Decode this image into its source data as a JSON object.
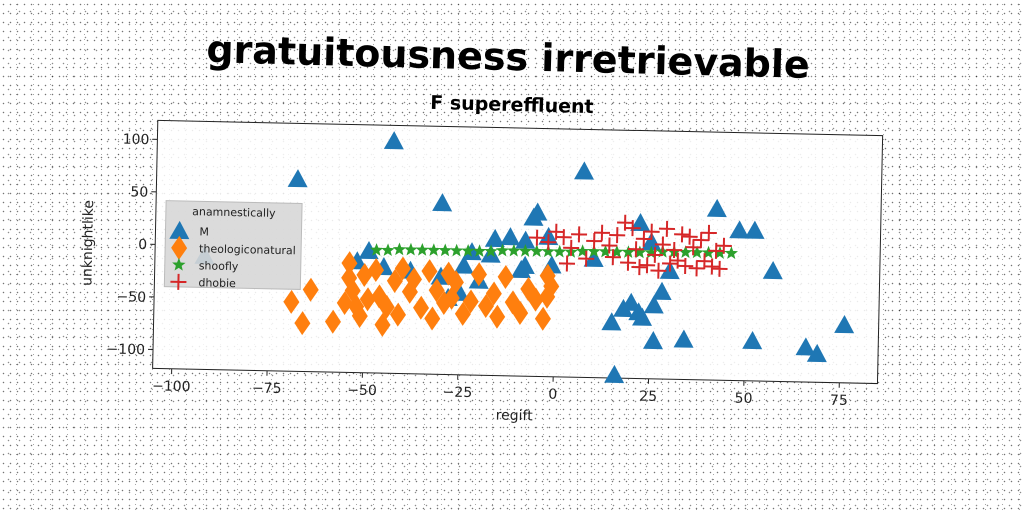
{
  "chart_data": {
    "type": "scatter",
    "title": "gratuitousness irretrievable",
    "subtitle": "F supereffluent",
    "xlabel": "regift",
    "ylabel": "unknightlike",
    "xlim": [
      -105,
      85
    ],
    "ylim": [
      -118,
      118
    ],
    "xticks": [
      -100,
      -75,
      -50,
      -25,
      0,
      25,
      50,
      75
    ],
    "yticks": [
      100,
      50,
      0,
      -50,
      -100
    ],
    "xtick_labels": [
      "−100",
      "−75",
      "−50",
      "−25",
      "0",
      "25",
      "50",
      "75"
    ],
    "ytick_labels": [
      "100",
      "50",
      "0",
      "−50",
      "−100"
    ],
    "grid": false,
    "legend": {
      "title": "anamnestically",
      "placement": "center-left"
    },
    "series": [
      {
        "name": "M",
        "marker": "triangle",
        "color": "#1f77b4",
        "points": [
          [
            -43,
            103
          ],
          [
            -68,
            65
          ],
          [
            -92,
            -10
          ],
          [
            -30,
            45
          ],
          [
            -52,
            -12
          ],
          [
            -49,
            -2
          ],
          [
            -45,
            -17
          ],
          [
            -38,
            -20
          ],
          [
            -30,
            -25
          ],
          [
            -28,
            -45
          ],
          [
            -24,
            -14
          ],
          [
            -22,
            -1
          ],
          [
            -25,
            -40
          ],
          [
            -20,
            -28
          ],
          [
            -17,
            -3
          ],
          [
            -16,
            12
          ],
          [
            -12,
            14
          ],
          [
            -9,
            -17
          ],
          [
            -8,
            11
          ],
          [
            -6,
            33
          ],
          [
            -5,
            38
          ],
          [
            -8,
            -13
          ],
          [
            -2,
            15
          ],
          [
            -1,
            -12
          ],
          [
            7,
            78
          ],
          [
            22,
            30
          ],
          [
            25,
            12
          ],
          [
            28,
            -35
          ],
          [
            30,
            -15
          ],
          [
            15,
            -65
          ],
          [
            18,
            -52
          ],
          [
            20,
            -46
          ],
          [
            22,
            -55
          ],
          [
            23,
            -60
          ],
          [
            26,
            -48
          ],
          [
            26,
            -82
          ],
          [
            34,
            -80
          ],
          [
            42,
            45
          ],
          [
            48,
            25
          ],
          [
            52,
            25
          ],
          [
            57,
            -13
          ],
          [
            52,
            -80
          ],
          [
            66,
            -85
          ],
          [
            69,
            -91
          ],
          [
            76,
            -63
          ],
          [
            16,
            -115
          ],
          [
            10,
            -5
          ]
        ]
      },
      {
        "name": "theologiconatural",
        "marker": "diamond",
        "color": "#ff7f0e",
        "points": [
          [
            -69,
            -52
          ],
          [
            -64,
            -40
          ],
          [
            -66,
            -72
          ],
          [
            -58,
            -70
          ],
          [
            -55,
            -52
          ],
          [
            -54,
            -14
          ],
          [
            -54,
            -28
          ],
          [
            -53,
            -40
          ],
          [
            -52,
            -55
          ],
          [
            -51,
            -64
          ],
          [
            -50,
            -25
          ],
          [
            -49,
            -48
          ],
          [
            -47,
            -20
          ],
          [
            -46,
            -45
          ],
          [
            -45,
            -72
          ],
          [
            -44,
            -55
          ],
          [
            -42,
            -30
          ],
          [
            -41,
            -62
          ],
          [
            -40,
            -18
          ],
          [
            -38,
            -40
          ],
          [
            -37,
            -28
          ],
          [
            -35,
            -55
          ],
          [
            -33,
            -20
          ],
          [
            -32,
            -65
          ],
          [
            -31,
            -38
          ],
          [
            -29,
            -50
          ],
          [
            -28,
            -22
          ],
          [
            -27,
            -45
          ],
          [
            -26,
            -30
          ],
          [
            -24,
            -60
          ],
          [
            -22,
            -48
          ],
          [
            -20,
            -22
          ],
          [
            -18,
            -52
          ],
          [
            -16,
            -40
          ],
          [
            -15,
            -62
          ],
          [
            -13,
            -24
          ],
          [
            -11,
            -48
          ],
          [
            -9,
            -58
          ],
          [
            -7,
            -35
          ],
          [
            -5,
            -45
          ],
          [
            -3,
            -63
          ],
          [
            -2,
            -22
          ],
          [
            -1,
            -32
          ],
          [
            -2,
            -42
          ]
        ]
      },
      {
        "name": "shoofly",
        "marker": "star",
        "color": "#2ca02c",
        "points": [
          [
            -47,
            -1
          ],
          [
            -44,
            -1
          ],
          [
            -41,
            0
          ],
          [
            -38,
            0
          ],
          [
            -35,
            0
          ],
          [
            -32,
            0
          ],
          [
            -29,
            0
          ],
          [
            -26,
            0
          ],
          [
            -23,
            0
          ],
          [
            -20,
            0
          ],
          [
            -17,
            0
          ],
          [
            -14,
            1
          ],
          [
            -11,
            1
          ],
          [
            -8,
            1
          ],
          [
            -5,
            1
          ],
          [
            -2,
            1
          ],
          [
            1,
            1
          ],
          [
            4,
            1
          ],
          [
            7,
            2
          ],
          [
            10,
            2
          ],
          [
            13,
            2
          ],
          [
            16,
            2
          ],
          [
            19,
            2
          ],
          [
            22,
            2
          ],
          [
            25,
            2
          ],
          [
            28,
            3
          ],
          [
            31,
            3
          ],
          [
            34,
            3
          ],
          [
            37,
            3
          ],
          [
            40,
            3
          ],
          [
            43,
            3
          ],
          [
            46,
            3
          ]
        ]
      },
      {
        "name": "dhobie",
        "marker": "plus",
        "color": "#d62728",
        "points": [
          [
            -5,
            14
          ],
          [
            -2,
            10
          ],
          [
            0,
            20
          ],
          [
            2,
            15
          ],
          [
            3,
            -10
          ],
          [
            4,
            5
          ],
          [
            6,
            18
          ],
          [
            8,
            -5
          ],
          [
            10,
            12
          ],
          [
            12,
            20
          ],
          [
            14,
            8
          ],
          [
            15,
            -3
          ],
          [
            16,
            18
          ],
          [
            18,
            30
          ],
          [
            19,
            -8
          ],
          [
            20,
            25
          ],
          [
            21,
            5
          ],
          [
            22,
            -12
          ],
          [
            23,
            15
          ],
          [
            24,
            -10
          ],
          [
            25,
            22
          ],
          [
            26,
            0
          ],
          [
            27,
            -15
          ],
          [
            28,
            10
          ],
          [
            29,
            25
          ],
          [
            30,
            -8
          ],
          [
            31,
            5
          ],
          [
            32,
            -5
          ],
          [
            33,
            20
          ],
          [
            34,
            -10
          ],
          [
            35,
            18
          ],
          [
            36,
            8
          ],
          [
            37,
            -12
          ],
          [
            38,
            15
          ],
          [
            39,
            -5
          ],
          [
            40,
            22
          ],
          [
            41,
            -10
          ],
          [
            42,
            5
          ],
          [
            43,
            -12
          ],
          [
            44,
            10
          ]
        ]
      }
    ]
  }
}
